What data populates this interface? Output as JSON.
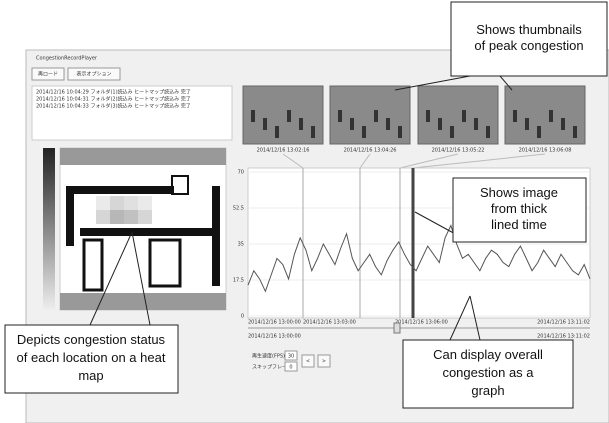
{
  "window": {
    "title": "CongestionRecordPlayer",
    "buttons": [
      "再ロード",
      "表示オプション"
    ],
    "log_lines": [
      "2014/12/16 10:04:29 フォルダ(1)読込み ヒートマップ読込み 完了",
      "2014/12/16 10:04:31 フォルダ(2)読込み ヒートマップ読込み 完了",
      "2014/12/16 10:04:33 フォルダ(3)読込み ヒートマップ読込み 完了"
    ]
  },
  "thumbnails": [
    {
      "time": "2014/12/16 13:02:16"
    },
    {
      "time": "2014/12/16 13:04:26"
    },
    {
      "time": "2014/12/16 13:05:22"
    },
    {
      "time": "2014/12/16 13:06:08"
    }
  ],
  "chart_data": {
    "type": "line",
    "ylim": [
      0,
      70
    ],
    "yticks": [
      0,
      17.5,
      35,
      52.5,
      70
    ],
    "x_labels": [
      "2014/12/16 13:00:00",
      "2014/12/16 13:03:00",
      "2014/12/16 13:06:00",
      "2014/12/16 13:11:02"
    ],
    "color": "#555555",
    "values": [
      15,
      22,
      18,
      12,
      20,
      28,
      25,
      18,
      30,
      38,
      32,
      22,
      28,
      35,
      30,
      25,
      33,
      40,
      28,
      22,
      26,
      30,
      24,
      20,
      27,
      32,
      36,
      30,
      25,
      22,
      28,
      34,
      30,
      26,
      38,
      44,
      35,
      28,
      30,
      26,
      22,
      28,
      32,
      30,
      26,
      24,
      30,
      34,
      28,
      22,
      26,
      32,
      28,
      24,
      30,
      26,
      22,
      20,
      25,
      18
    ]
  },
  "slider": {
    "start": "2014/12/16 13:00:00",
    "end": "2014/12/16 13:11:02"
  },
  "controls": {
    "fps_label": "再生速度(FPS)",
    "fps": "30",
    "skip_label": "スキップフレーム",
    "skip": "0",
    "prev": "<",
    "next": ">"
  },
  "callouts": {
    "thumbnails": "Shows thumbnails of peak congestion",
    "thick_line": "Shows image from thick lined time",
    "heat_map": "Depicts congestion status of each location on a heat map",
    "graph": "Can display overall congestion as a graph"
  }
}
